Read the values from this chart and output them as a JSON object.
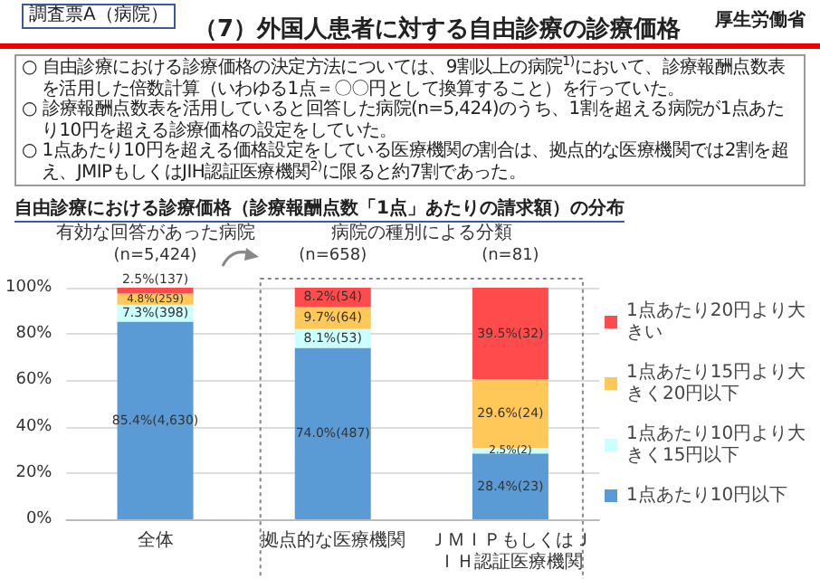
{
  "chart_data": {
    "type": "bar",
    "title": "（7）外国人患者に対する自由診療の診療価格",
    "subtitle": "自由診療における診療価格（診療報酬点数「1点」あたりの請求額）の分布",
    "annotations": [
      "調査票A（病院）",
      "厚生労働省",
      "○ 自由診療における診療価格の決定方法については、9割以上の病院$^{1)}$において、診療報酬点数表を活用した倍数計算（いわゆる1点＝〇〇円として換算すること）を行っていた。",
      "○ 診療報酬点数表を活用していると回答した病院(n=5,424)のうち、1割を超える病院が1点あたり10円を超える診療価格の設定をしていた。",
      "○ 1点あたり10円を超える価格設定をしている医療機関の割合は、拠点的な医療機関では2割を超え、JMIPもしくはJIH認証医療機関$^{2)}$に限ると約7割であった。",
      "有効な回答があった病院",
      "(n=5,424)",
      "(n=658)",
      "(n=81)",
      "病院の種別による分類"
    ],
    "categories": [
      "全体",
      "拠点的な医療機関",
      "ＪＭＩＰもしくはＪＩＨ認証医療機関"
    ],
    "series": [
      {
        "name": "1点あたり10円以下",
        "color": "#5b9bd5",
        "values": [
          85.4,
          74.0,
          28.4
        ],
        "value_labels": [
          "85.4%(4,630)",
          "74.0%(487)",
          "28.4%(23)"
        ]
      },
      {
        "name": "1点あたり10円より大きく15円以下",
        "color": "#ccffff",
        "values": [
          7.3,
          8.1,
          2.5
        ],
        "value_labels": [
          "7.3%(398)",
          "8.1%(53)",
          "2.5%(2)"
        ]
      },
      {
        "name": "1点あたり15円より大きく20円以下",
        "color": "#ffc859",
        "values": [
          4.8,
          9.7,
          29.6
        ],
        "value_labels": [
          "4.8%(259)",
          "9.7%(64)",
          "29.6%(24)"
        ]
      },
      {
        "name": "1点あたり20円より大きい",
        "color": "#ff4b4b",
        "values": [
          2.5,
          8.2,
          39.5
        ],
        "value_labels": [
          "2.5%(137)",
          "8.2%(54)",
          "39.5%(32)"
        ]
      }
    ],
    "stacked": true,
    "ylim": [
      0,
      100
    ],
    "yticks": [
      {
        "value": 0,
        "label": "0%"
      },
      {
        "value": 20,
        "label": "20%"
      },
      {
        "value": 40,
        "label": "40%"
      },
      {
        "value": 60,
        "label": "60%"
      },
      {
        "value": 80,
        "label": "80%"
      },
      {
        "value": 100,
        "label": "100%"
      }
    ],
    "grid": "y",
    "legend": "right"
  }
}
